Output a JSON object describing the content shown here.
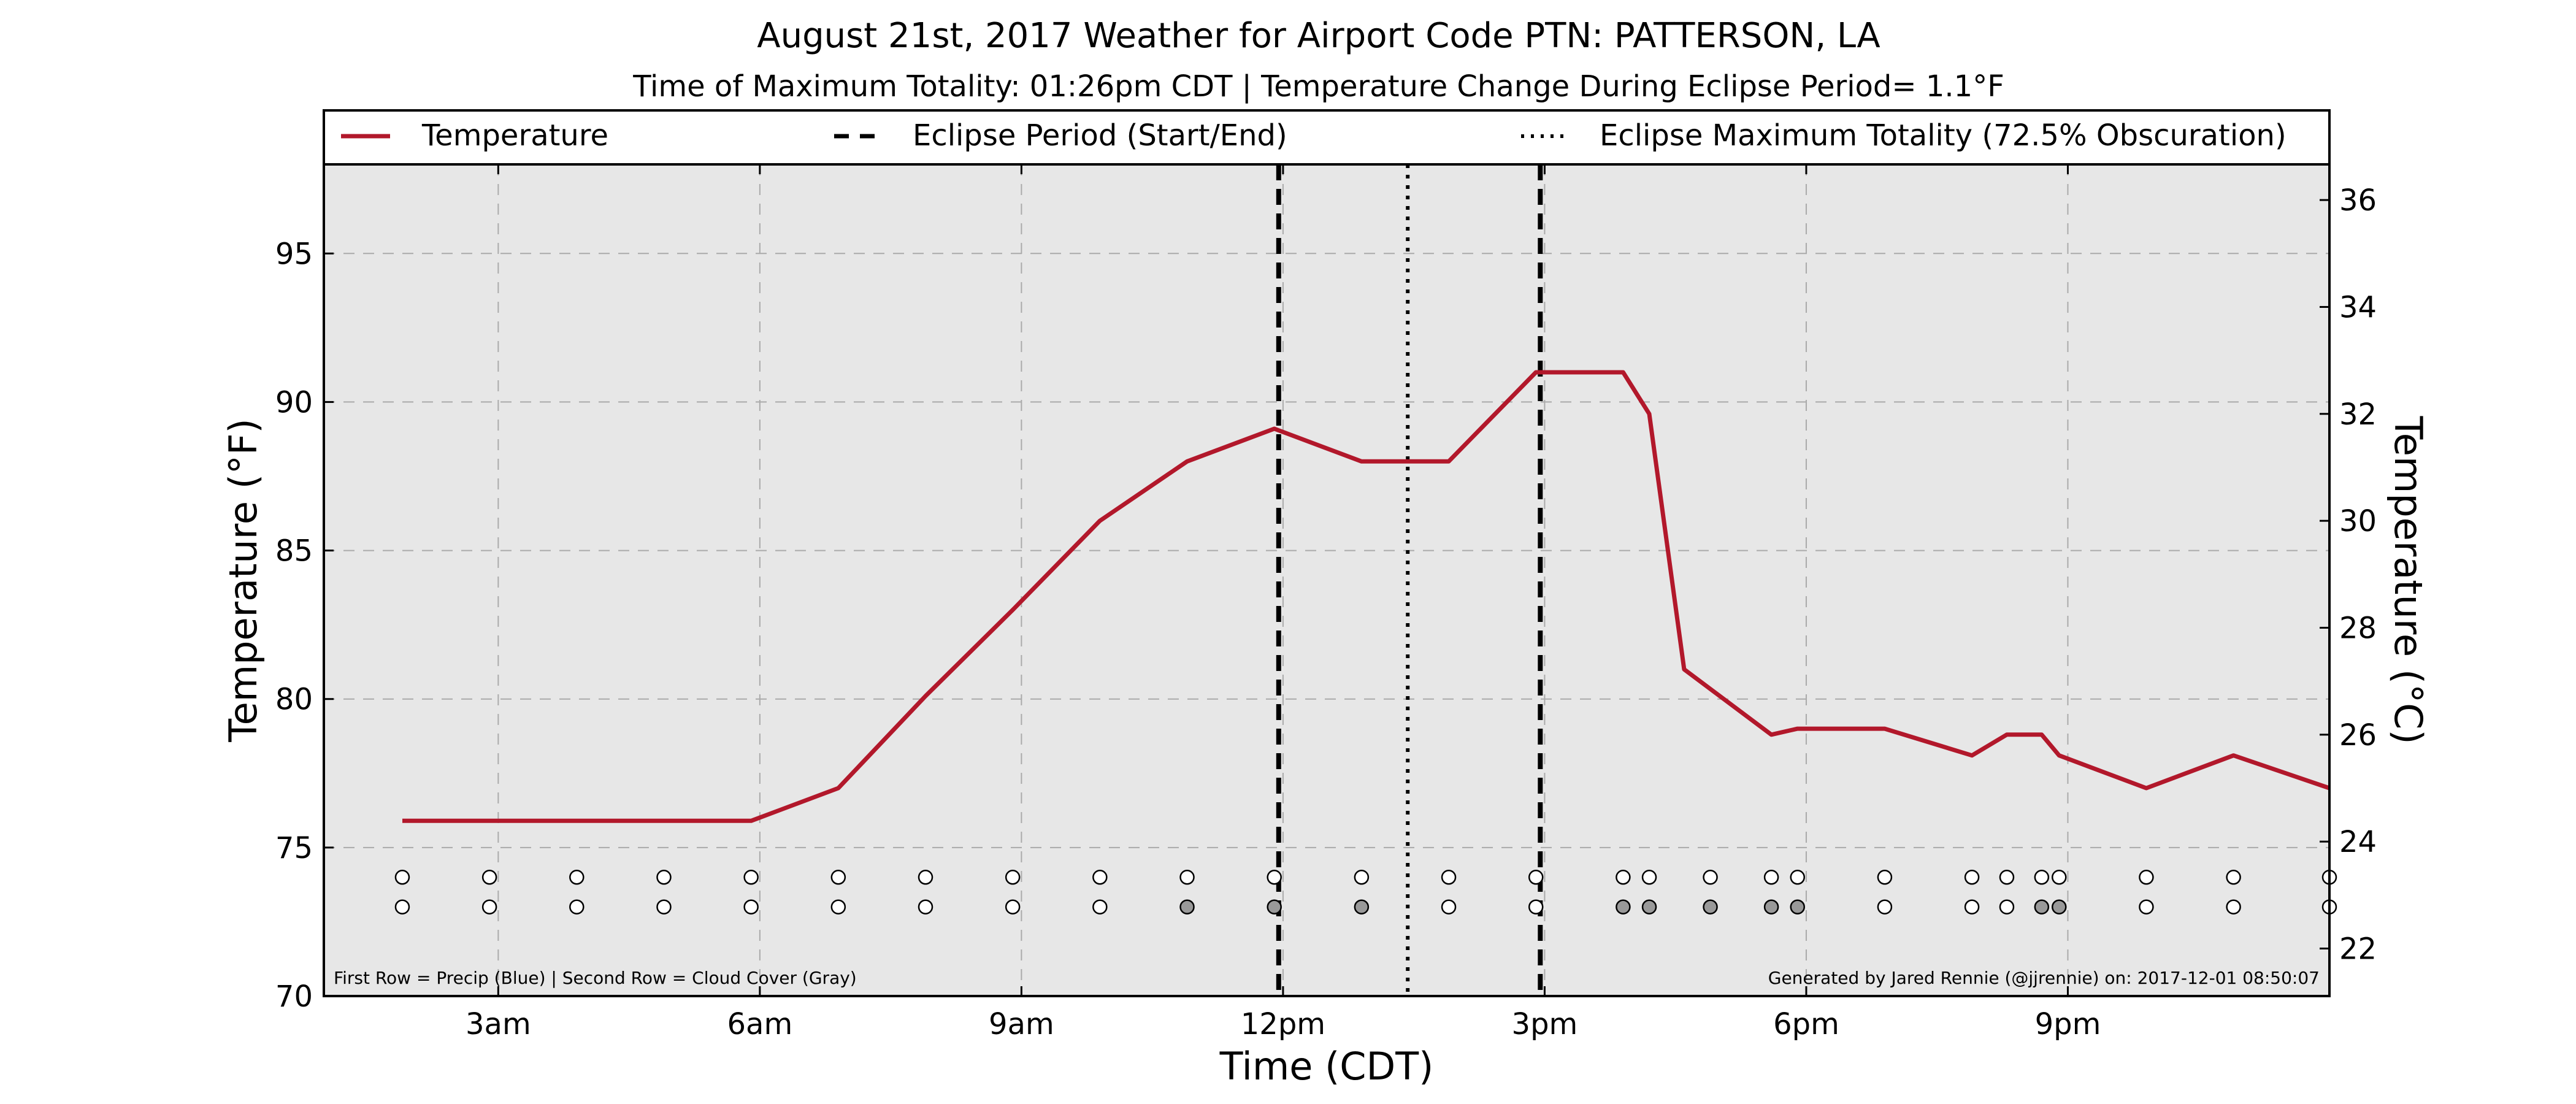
{
  "chart_data": {
    "type": "line",
    "title": "August 21st, 2017 Weather for Airport Code PTN: PATTERSON, LA",
    "subtitle": "Time of Maximum Totality: 01:26pm CDT | Temperature Change During Eclipse Period= 1.1°F",
    "xlabel": "Time (CDT)",
    "ylabel": "Temperature (°F)",
    "ylabel_right": "Temperature (°C)",
    "x_hours_range": [
      1.0,
      24.0
    ],
    "ylim": [
      70,
      98
    ],
    "ylim_right": [
      21.1111,
      36.6667
    ],
    "x_ticks": [
      {
        "hour": 3,
        "label": "3am"
      },
      {
        "hour": 6,
        "label": "6am"
      },
      {
        "hour": 9,
        "label": "9am"
      },
      {
        "hour": 12,
        "label": "12pm"
      },
      {
        "hour": 15,
        "label": "3pm"
      },
      {
        "hour": 18,
        "label": "6pm"
      },
      {
        "hour": 21,
        "label": "9pm"
      }
    ],
    "y_ticks": [
      70,
      75,
      80,
      85,
      90,
      95
    ],
    "y_ticks_right": [
      22,
      24,
      26,
      28,
      30,
      32,
      34,
      36
    ],
    "grid": true,
    "legend_position": "top",
    "legend": {
      "temperature": "Temperature",
      "eclipse_period": "Eclipse Period (Start/End)",
      "eclipse_max": "Eclipse Maximum Totality (72.5% Obscuration)"
    },
    "series": [
      {
        "name": "Temperature",
        "color": "#b2182b",
        "x": [
          1.9,
          2.9,
          3.9,
          4.9,
          5.9,
          6.9,
          7.9,
          8.9,
          9.9,
          10.9,
          11.9,
          12.9,
          13.9,
          14.9,
          15.9,
          16.2,
          16.6,
          17.6,
          17.9,
          18.9,
          19.9,
          20.3,
          20.7,
          20.9,
          21.9,
          22.9,
          24.0
        ],
        "y": [
          75.9,
          75.9,
          75.9,
          75.9,
          75.9,
          77.0,
          80.1,
          83.0,
          86.0,
          88.0,
          89.1,
          88.0,
          88.0,
          91.0,
          91.0,
          89.6,
          81.0,
          78.8,
          79.0,
          79.0,
          78.1,
          78.8,
          78.8,
          78.1,
          77.0,
          78.1,
          77.0
        ]
      }
    ],
    "eclipse_start_hour": 11.95,
    "eclipse_end_hour": 14.95,
    "eclipse_max_hour": 13.43,
    "observation_rows": {
      "precip_y": 74.0,
      "cloud_y": 73.0,
      "precip_color": "#ffffff",
      "cloud_colors": {
        "clear": "#ffffff",
        "cloudy": "#999999"
      },
      "precip_hours": [
        1.9,
        2.9,
        3.9,
        4.9,
        5.9,
        6.9,
        7.9,
        8.9,
        9.9,
        10.9,
        11.9,
        12.9,
        13.9,
        14.9,
        15.9,
        16.2,
        16.9,
        17.6,
        17.9,
        18.9,
        19.9,
        20.3,
        20.7,
        20.9,
        21.9,
        22.9,
        24.0
      ],
      "cloud_hours": [
        1.9,
        2.9,
        3.9,
        4.9,
        5.9,
        6.9,
        7.9,
        8.9,
        9.9,
        10.9,
        11.9,
        12.9,
        13.9,
        14.9,
        15.9,
        16.2,
        16.9,
        17.6,
        17.9,
        18.9,
        19.9,
        20.3,
        20.7,
        20.9,
        21.9,
        22.9,
        24.0
      ],
      "cloud_cloudy": [
        false,
        false,
        false,
        false,
        false,
        false,
        false,
        false,
        false,
        true,
        true,
        true,
        false,
        false,
        true,
        true,
        true,
        true,
        true,
        false,
        false,
        false,
        true,
        true,
        false,
        false,
        false
      ]
    },
    "footnote_left": "First Row = Precip (Blue) | Second Row = Cloud Cover (Gray)",
    "footnote_right": "Generated by Jared Rennie (@jjrennie) on: 2017-12-01 08:50:07"
  }
}
